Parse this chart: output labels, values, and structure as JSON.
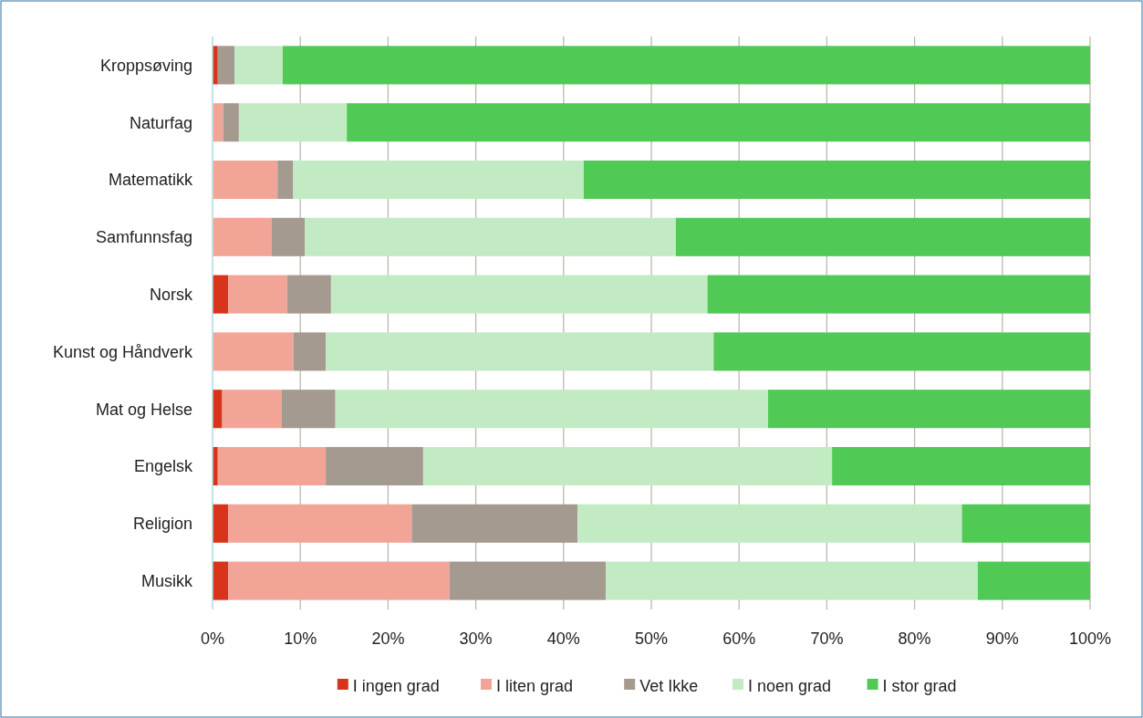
{
  "chart_data": {
    "type": "bar",
    "orientation": "horizontal",
    "stacked": true,
    "categories": [
      "Kroppsøving",
      "Naturfag",
      "Matematikk",
      "Samfunnsfag",
      "Norsk",
      "Kunst og Håndverk",
      "Mat og Helse",
      "Engelsk",
      "Religion",
      "Musikk"
    ],
    "series": [
      {
        "name": "I ingen grad",
        "color": "#d7341b",
        "values": [
          0.6,
          0,
          0,
          0,
          1.8,
          0,
          1.1,
          0.6,
          1.8,
          1.8
        ]
      },
      {
        "name": "I liten grad",
        "color": "#f2a597",
        "values": [
          0,
          1.2,
          7.4,
          6.7,
          6.7,
          9.2,
          6.8,
          12.3,
          20.9,
          25.2
        ]
      },
      {
        "name": "Vet Ikke",
        "color": "#a59a8f",
        "values": [
          1.9,
          1.8,
          1.8,
          3.8,
          5.0,
          3.7,
          6.1,
          11.1,
          18.9,
          17.8
        ]
      },
      {
        "name": "I noen grad",
        "color": "#c2ebc4",
        "values": [
          5.5,
          12.3,
          33.1,
          42.3,
          42.9,
          44.2,
          49.3,
          46.6,
          43.8,
          42.4
        ]
      },
      {
        "name": "I stor grad",
        "color": "#51c955",
        "values": [
          92.0,
          84.7,
          57.7,
          47.2,
          43.6,
          42.9,
          36.7,
          29.4,
          14.6,
          12.8
        ]
      }
    ],
    "xlim": [
      0,
      100
    ],
    "xticks": [
      {
        "value": 0,
        "label": "0%"
      },
      {
        "value": 10,
        "label": "10%"
      },
      {
        "value": 20,
        "label": "20%"
      },
      {
        "value": 30,
        "label": "30%"
      },
      {
        "value": 40,
        "label": "40%"
      },
      {
        "value": 50,
        "label": "50%"
      },
      {
        "value": 60,
        "label": "60%"
      },
      {
        "value": 70,
        "label": "70%"
      },
      {
        "value": 80,
        "label": "80%"
      },
      {
        "value": 90,
        "label": "90%"
      },
      {
        "value": 100,
        "label": "100%"
      }
    ],
    "grid": "x",
    "legend": "bottom"
  }
}
